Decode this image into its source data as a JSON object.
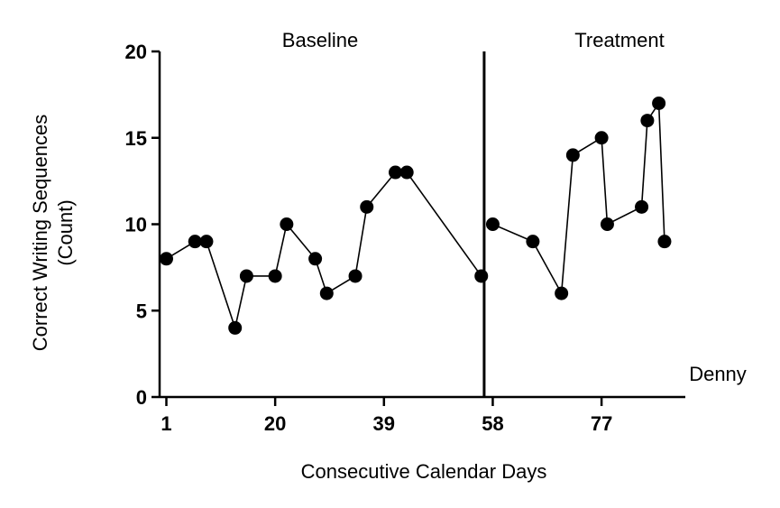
{
  "chart_data": {
    "type": "line",
    "xlabel": "Consecutive Calendar Days",
    "ylabel_line1": "Correct Writing Sequences",
    "ylabel_line2": "(Count)",
    "participant_label": "Denny",
    "xticks": [
      1,
      20,
      39,
      58,
      77
    ],
    "yticks": [
      0,
      5,
      10,
      15,
      20
    ],
    "xlim": [
      0,
      88
    ],
    "ylim": [
      0,
      20
    ],
    "phase_change_x": 56.5,
    "phases": [
      {
        "name": "Baseline"
      },
      {
        "name": "Treatment"
      }
    ],
    "series": [
      {
        "phase": "Baseline",
        "x": [
          1,
          6,
          8,
          13,
          15,
          20,
          22,
          27,
          29,
          34,
          36,
          41,
          43,
          56
        ],
        "y": [
          8,
          9,
          9,
          4,
          7,
          7,
          10,
          8,
          6,
          7,
          11,
          13,
          13,
          7
        ]
      },
      {
        "phase": "Treatment",
        "x": [
          58,
          65,
          70,
          72,
          77,
          78,
          84,
          85,
          87,
          88
        ],
        "y": [
          10,
          9,
          6,
          14,
          15,
          10,
          11,
          16,
          17,
          9
        ]
      }
    ],
    "grid": false,
    "marker": "filled-circle",
    "color": "#000000"
  }
}
